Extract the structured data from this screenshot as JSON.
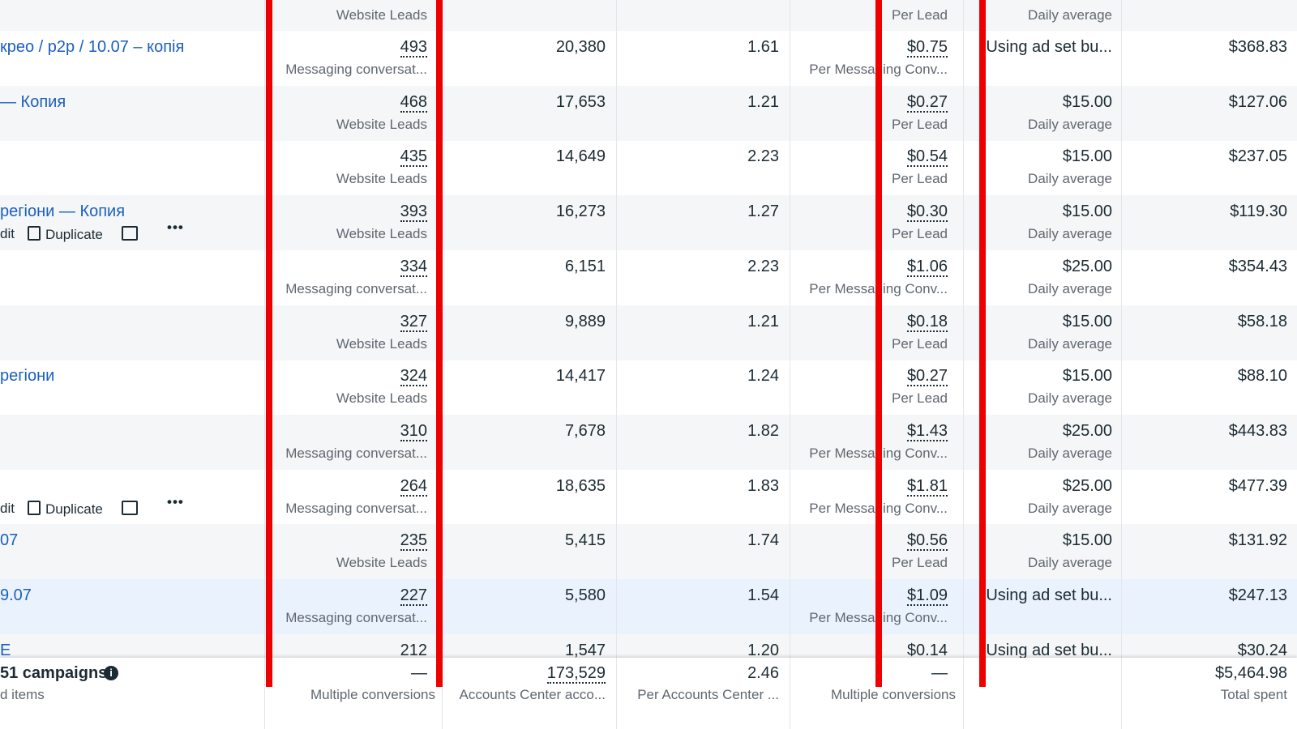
{
  "top_row": {
    "results_label": "Website Leads",
    "cost_label": "Per Lead",
    "budget_label": "Daily average"
  },
  "rows": [
    {
      "name": "креo / p2p / 10.07 – копія",
      "results": "493",
      "results_label": "Messaging conversat...",
      "reach": "20,380",
      "frequency": "1.61",
      "cost": "$0.75",
      "cost_label": "Per Messaging Conv...",
      "budget": "Using ad set bu...",
      "spent": "$368.83"
    },
    {
      "name": "— Копия",
      "results": "468",
      "results_label": "Website Leads",
      "reach": "17,653",
      "frequency": "1.21",
      "cost": "$0.27",
      "cost_label": "Per Lead",
      "budget": "$15.00",
      "budget_label": "Daily average",
      "spent": "$127.06"
    },
    {
      "results": "435",
      "results_label": "Website Leads",
      "reach": "14,649",
      "frequency": "2.23",
      "cost": "$0.54",
      "cost_label": "Per Lead",
      "budget": "$15.00",
      "budget_label": "Daily average",
      "spent": "$237.05"
    },
    {
      "name": "регіони — Копия",
      "actions": [
        "dit",
        "Duplicate"
      ],
      "results": "393",
      "results_label": "Website Leads",
      "reach": "16,273",
      "frequency": "1.27",
      "cost": "$0.30",
      "cost_label": "Per Lead",
      "budget": "$15.00",
      "budget_label": "Daily average",
      "spent": "$119.30"
    },
    {
      "results": "334",
      "results_label": "Messaging conversat...",
      "reach": "6,151",
      "frequency": "2.23",
      "cost": "$1.06",
      "cost_label": "Per Messaging Conv...",
      "budget": "$25.00",
      "budget_label": "Daily average",
      "spent": "$354.43"
    },
    {
      "results": "327",
      "results_label": "Website Leads",
      "reach": "9,889",
      "frequency": "1.21",
      "cost": "$0.18",
      "cost_label": "Per Lead",
      "budget": "$15.00",
      "budget_label": "Daily average",
      "spent": "$58.18"
    },
    {
      "name": "регіони",
      "results": "324",
      "results_label": "Website Leads",
      "reach": "14,417",
      "frequency": "1.24",
      "cost": "$0.27",
      "cost_label": "Per Lead",
      "budget": "$15.00",
      "budget_label": "Daily average",
      "spent": "$88.10"
    },
    {
      "results": "310",
      "results_label": "Messaging conversat...",
      "reach": "7,678",
      "frequency": "1.82",
      "cost": "$1.43",
      "cost_label": "Per Messaging Conv...",
      "budget": "$25.00",
      "budget_label": "Daily average",
      "spent": "$443.83"
    },
    {
      "actions": [
        "dit",
        "Duplicate"
      ],
      "results": "264",
      "results_label": "Messaging conversat...",
      "reach": "18,635",
      "frequency": "1.83",
      "cost": "$1.81",
      "cost_label": "Per Messaging Conv...",
      "budget": "$25.00",
      "budget_label": "Daily average",
      "spent": "$477.39"
    },
    {
      "name": "07",
      "results": "235",
      "results_label": "Website Leads",
      "reach": "5,415",
      "frequency": "1.74",
      "cost": "$0.56",
      "cost_label": "Per Lead",
      "budget": "$15.00",
      "budget_label": "Daily average",
      "spent": "$131.92"
    },
    {
      "name": "9.07",
      "results": "227",
      "results_label": "Messaging conversat...",
      "reach": "5,580",
      "frequency": "1.54",
      "cost": "$1.09",
      "cost_label": "Per Messaging Conv...",
      "budget": "Using ad set bu...",
      "spent": "$247.13"
    },
    {
      "name": "E",
      "results": "212",
      "reach": "1,547",
      "frequency": "1.20",
      "cost": "$0.14",
      "budget": "Using ad set bu...",
      "spent": "$30.24"
    }
  ],
  "footer": {
    "name": "51 campaigns",
    "name_sub": "d items",
    "results": "—",
    "results_label": "Multiple conversions",
    "reach": "173,529",
    "reach_label": "Accounts Center acco...",
    "frequency": "2.46",
    "frequency_label": "Per Accounts Center ...",
    "cost": "—",
    "cost_label": "Multiple conversions",
    "spent": "$5,464.98",
    "spent_label": "Total spent"
  }
}
